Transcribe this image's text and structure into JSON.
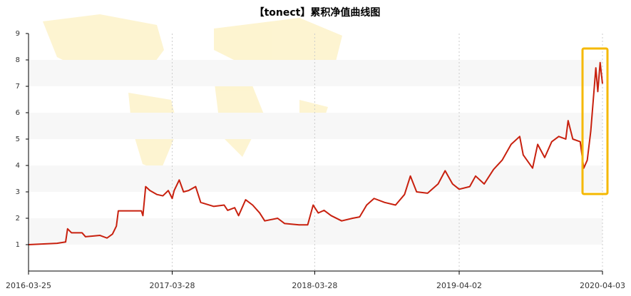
{
  "chart_data": {
    "type": "line",
    "title": "【tonect】累积净值曲线图",
    "x": [
      "2016-03-25",
      "2016-06-06",
      "2016-06-28",
      "2016-07-03",
      "2016-07-13",
      "2016-08-09",
      "2016-08-18",
      "2016-09-24",
      "2016-10-12",
      "2016-10-26",
      "2016-11-05",
      "2016-11-10",
      "2017-01-08",
      "2017-01-12",
      "2017-01-19",
      "2017-01-30",
      "2017-02-17",
      "2017-03-04",
      "2017-03-18",
      "2017-03-28",
      "2017-04-02",
      "2017-04-15",
      "2017-04-26",
      "2017-05-09",
      "2017-05-27",
      "2017-06-09",
      "2017-07-12",
      "2017-08-08",
      "2017-08-17",
      "2017-09-04",
      "2017-09-14",
      "2017-10-02",
      "2017-10-20",
      "2017-11-07",
      "2017-11-20",
      "2017-12-23",
      "2018-01-10",
      "2018-02-16",
      "2018-03-10",
      "2018-03-24",
      "2018-04-06",
      "2018-04-21",
      "2018-05-09",
      "2018-06-05",
      "2018-07-03",
      "2018-07-21",
      "2018-08-08",
      "2018-08-27",
      "2018-09-23",
      "2018-10-21",
      "2018-11-13",
      "2018-11-28",
      "2018-12-14",
      "2019-01-11",
      "2019-02-07",
      "2019-02-25",
      "2019-03-16",
      "2019-04-02",
      "2019-04-29",
      "2019-05-14",
      "2019-06-05",
      "2019-06-29",
      "2019-07-21",
      "2019-08-13",
      "2019-09-04",
      "2019-09-13",
      "2019-10-07",
      "2019-10-20",
      "2019-11-07",
      "2019-11-25",
      "2019-12-13",
      "2019-12-31",
      "2020-01-06",
      "2020-01-18",
      "2020-02-06",
      "2020-02-15",
      "2020-02-24",
      "2020-03-04",
      "2020-03-17",
      "2020-03-22",
      "2020-03-28",
      "2020-04-03"
    ],
    "values": [
      1.0,
      1.05,
      1.1,
      1.6,
      1.45,
      1.45,
      1.3,
      1.35,
      1.25,
      1.4,
      1.7,
      2.28,
      2.28,
      2.1,
      3.2,
      3.05,
      2.9,
      2.85,
      3.05,
      2.75,
      3.05,
      3.45,
      3.0,
      3.05,
      3.2,
      2.6,
      2.45,
      2.5,
      2.3,
      2.4,
      2.1,
      2.7,
      2.5,
      2.2,
      1.9,
      2.0,
      1.8,
      1.75,
      1.75,
      2.5,
      2.2,
      2.3,
      2.1,
      1.9,
      2.0,
      2.05,
      2.5,
      2.75,
      2.6,
      2.5,
      2.9,
      3.6,
      3.0,
      2.95,
      3.3,
      3.8,
      3.3,
      3.1,
      3.2,
      3.6,
      3.3,
      3.85,
      4.2,
      4.8,
      5.1,
      4.4,
      3.9,
      4.8,
      4.3,
      4.9,
      5.1,
      5.0,
      5.7,
      5.0,
      4.9,
      3.9,
      4.2,
      5.3,
      7.7,
      6.8,
      7.9,
      7.1
    ],
    "color": "#c8200e",
    "xlim": [
      "2016-03-25",
      "2020-04-03"
    ],
    "xticks": [
      "2016-03-25",
      "2017-03-28",
      "2018-03-28",
      "2019-04-02",
      "2020-04-03"
    ],
    "ylim": [
      0,
      9
    ],
    "yticks": [
      1,
      2,
      3,
      4,
      5,
      6,
      7,
      8,
      9
    ],
    "grid": true
  }
}
